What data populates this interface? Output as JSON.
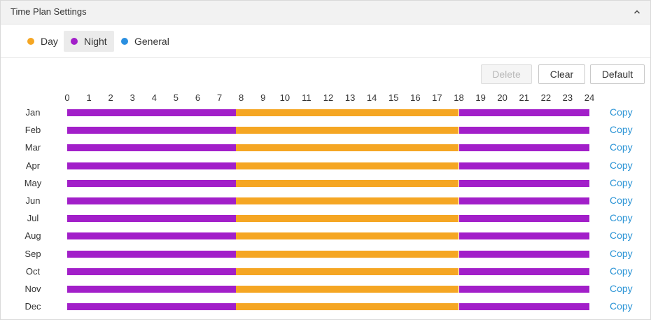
{
  "header": {
    "title": "Time Plan Settings",
    "collapse_icon": "chevron-up-icon"
  },
  "legend": {
    "items": [
      {
        "label": "Day",
        "color": "#f5a623",
        "selected": false
      },
      {
        "label": "Night",
        "color": "#a21fc9",
        "selected": true
      },
      {
        "label": "General",
        "color": "#2b8fe0",
        "selected": false
      }
    ]
  },
  "toolbar": {
    "delete_label": "Delete",
    "delete_disabled": true,
    "clear_label": "Clear",
    "default_label": "Default"
  },
  "timeline": {
    "hours": [
      "0",
      "1",
      "2",
      "3",
      "4",
      "5",
      "6",
      "7",
      "8",
      "9",
      "10",
      "11",
      "12",
      "13",
      "14",
      "15",
      "16",
      "17",
      "18",
      "19",
      "20",
      "21",
      "22",
      "23",
      "24"
    ],
    "colors": {
      "day": "#f5a623",
      "night": "#a21fc9"
    },
    "copy_label": "Copy",
    "months": [
      {
        "name": "Jan",
        "segments": [
          {
            "mode": "night",
            "start": 0,
            "end": 7.75
          },
          {
            "mode": "day",
            "start": 7.75,
            "end": 18
          },
          {
            "mode": "night",
            "start": 18,
            "end": 24
          }
        ]
      },
      {
        "name": "Feb",
        "segments": [
          {
            "mode": "night",
            "start": 0,
            "end": 7.75
          },
          {
            "mode": "day",
            "start": 7.75,
            "end": 18
          },
          {
            "mode": "night",
            "start": 18,
            "end": 24
          }
        ]
      },
      {
        "name": "Mar",
        "segments": [
          {
            "mode": "night",
            "start": 0,
            "end": 7.75
          },
          {
            "mode": "day",
            "start": 7.75,
            "end": 18
          },
          {
            "mode": "night",
            "start": 18,
            "end": 24
          }
        ]
      },
      {
        "name": "Apr",
        "segments": [
          {
            "mode": "night",
            "start": 0,
            "end": 7.75
          },
          {
            "mode": "day",
            "start": 7.75,
            "end": 18
          },
          {
            "mode": "night",
            "start": 18,
            "end": 24
          }
        ]
      },
      {
        "name": "May",
        "segments": [
          {
            "mode": "night",
            "start": 0,
            "end": 7.75
          },
          {
            "mode": "day",
            "start": 7.75,
            "end": 18
          },
          {
            "mode": "night",
            "start": 18,
            "end": 24
          }
        ]
      },
      {
        "name": "Jun",
        "segments": [
          {
            "mode": "night",
            "start": 0,
            "end": 7.75
          },
          {
            "mode": "day",
            "start": 7.75,
            "end": 18
          },
          {
            "mode": "night",
            "start": 18,
            "end": 24
          }
        ]
      },
      {
        "name": "Jul",
        "segments": [
          {
            "mode": "night",
            "start": 0,
            "end": 7.75
          },
          {
            "mode": "day",
            "start": 7.75,
            "end": 18
          },
          {
            "mode": "night",
            "start": 18,
            "end": 24
          }
        ]
      },
      {
        "name": "Aug",
        "segments": [
          {
            "mode": "night",
            "start": 0,
            "end": 7.75
          },
          {
            "mode": "day",
            "start": 7.75,
            "end": 18
          },
          {
            "mode": "night",
            "start": 18,
            "end": 24
          }
        ]
      },
      {
        "name": "Sep",
        "segments": [
          {
            "mode": "night",
            "start": 0,
            "end": 7.75
          },
          {
            "mode": "day",
            "start": 7.75,
            "end": 18
          },
          {
            "mode": "night",
            "start": 18,
            "end": 24
          }
        ]
      },
      {
        "name": "Oct",
        "segments": [
          {
            "mode": "night",
            "start": 0,
            "end": 7.75
          },
          {
            "mode": "day",
            "start": 7.75,
            "end": 18
          },
          {
            "mode": "night",
            "start": 18,
            "end": 24
          }
        ]
      },
      {
        "name": "Nov",
        "segments": [
          {
            "mode": "night",
            "start": 0,
            "end": 7.75
          },
          {
            "mode": "day",
            "start": 7.75,
            "end": 18
          },
          {
            "mode": "night",
            "start": 18,
            "end": 24
          }
        ]
      },
      {
        "name": "Dec",
        "segments": [
          {
            "mode": "night",
            "start": 0,
            "end": 7.75
          },
          {
            "mode": "day",
            "start": 7.75,
            "end": 18
          },
          {
            "mode": "night",
            "start": 18,
            "end": 24
          }
        ]
      }
    ]
  }
}
